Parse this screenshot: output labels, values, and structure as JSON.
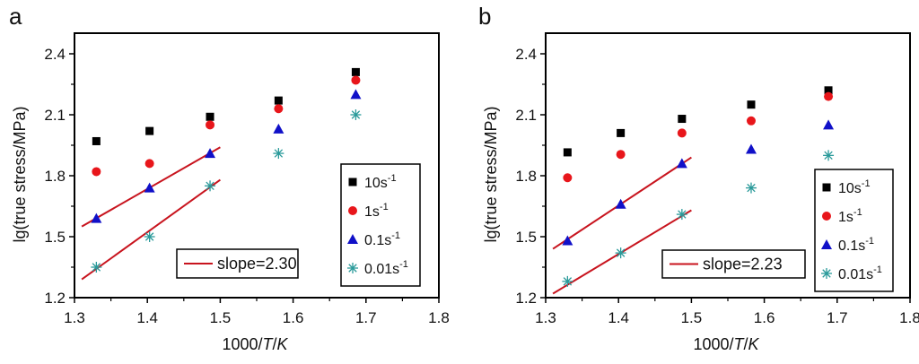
{
  "chart_data": [
    {
      "type": "scatter",
      "panel_label": "a",
      "title": "",
      "xlabel_parts": [
        "1000/",
        "T",
        "/",
        "K"
      ],
      "ylabel": "lg(true stress/MPa)",
      "xlim": [
        1.3,
        1.8
      ],
      "ylim": [
        1.2,
        2.5
      ],
      "xticks": [
        1.3,
        1.4,
        1.5,
        1.6,
        1.7,
        1.8
      ],
      "xtick_labels": [
        "1.3",
        "1.4",
        "1.5",
        "1.6",
        "1.7",
        "1.8"
      ],
      "yticks": [
        1.2,
        1.5,
        1.8,
        2.1,
        2.4
      ],
      "ytick_labels": [
        "1.2",
        "1.5",
        "1.8",
        "2.1",
        "2.4"
      ],
      "x": [
        1.33,
        1.403,
        1.486,
        1.58,
        1.686
      ],
      "series": [
        {
          "name": "10s-1",
          "label_base": "10s",
          "label_sup": "-1",
          "marker": "square",
          "color": "#000000",
          "values": [
            1.97,
            2.02,
            2.09,
            2.17,
            2.31
          ]
        },
        {
          "name": "1s-1",
          "label_base": "1s",
          "label_sup": "-1",
          "marker": "circle",
          "color": "#e8161b",
          "values": [
            1.82,
            1.86,
            2.05,
            2.13,
            2.27
          ]
        },
        {
          "name": "0.1s-1",
          "label_base": "0.1s",
          "label_sup": "-1",
          "marker": "triangle",
          "color": "#1010c8",
          "values": [
            1.59,
            1.74,
            1.91,
            2.03,
            2.2
          ]
        },
        {
          "name": "0.01s-1",
          "label_base": "0.01s",
          "label_sup": "-1",
          "marker": "star",
          "color": "#2a9a9a",
          "values": [
            1.35,
            1.5,
            1.75,
            1.91,
            2.1
          ]
        }
      ],
      "fit_lines": [
        {
          "x": [
            1.31,
            1.5
          ],
          "y": [
            1.55,
            1.94
          ],
          "color": "#c8141e"
        },
        {
          "x": [
            1.31,
            1.5
          ],
          "y": [
            1.29,
            1.78
          ],
          "color": "#c8141e"
        }
      ],
      "slope_legend": "slope=2.30",
      "legend_position": "right-center"
    },
    {
      "type": "scatter",
      "panel_label": "b",
      "title": "",
      "xlabel_parts": [
        "1000/",
        "T",
        "/",
        "K"
      ],
      "ylabel": "lg(true stress/MPa)",
      "xlim": [
        1.3,
        1.8
      ],
      "ylim": [
        1.2,
        2.5
      ],
      "xticks": [
        1.3,
        1.4,
        1.5,
        1.6,
        1.7,
        1.8
      ],
      "xtick_labels": [
        "1.3",
        "1.4",
        "1.5",
        "1.6",
        "1.7",
        "1.8"
      ],
      "yticks": [
        1.2,
        1.5,
        1.8,
        2.1,
        2.4
      ],
      "ytick_labels": [
        "1.2",
        "1.5",
        "1.8",
        "2.1",
        "2.4"
      ],
      "x": [
        1.33,
        1.403,
        1.487,
        1.582,
        1.688
      ],
      "series": [
        {
          "name": "10s-1",
          "label_base": "10s",
          "label_sup": "-1",
          "marker": "square",
          "color": "#000000",
          "values": [
            1.915,
            2.01,
            2.08,
            2.15,
            2.22
          ]
        },
        {
          "name": "1s-1",
          "label_base": "1s",
          "label_sup": "-1",
          "marker": "circle",
          "color": "#e8161b",
          "values": [
            1.79,
            1.905,
            2.01,
            2.07,
            2.19
          ]
        },
        {
          "name": "0.1s-1",
          "label_base": "0.1s",
          "label_sup": "-1",
          "marker": "triangle",
          "color": "#1010c8",
          "values": [
            1.48,
            1.66,
            1.86,
            1.93,
            2.05
          ]
        },
        {
          "name": "0.01s-1",
          "label_base": "0.01s",
          "label_sup": "-1",
          "marker": "star",
          "color": "#2a9a9a",
          "values": [
            1.28,
            1.42,
            1.61,
            1.74,
            1.9
          ]
        }
      ],
      "fit_lines": [
        {
          "x": [
            1.31,
            1.5
          ],
          "y": [
            1.44,
            1.89
          ],
          "color": "#c8141e"
        },
        {
          "x": [
            1.31,
            1.5
          ],
          "y": [
            1.22,
            1.63
          ],
          "color": "#c8141e"
        }
      ],
      "slope_legend": "slope=2.23",
      "legend_position": "bottom-right"
    }
  ]
}
